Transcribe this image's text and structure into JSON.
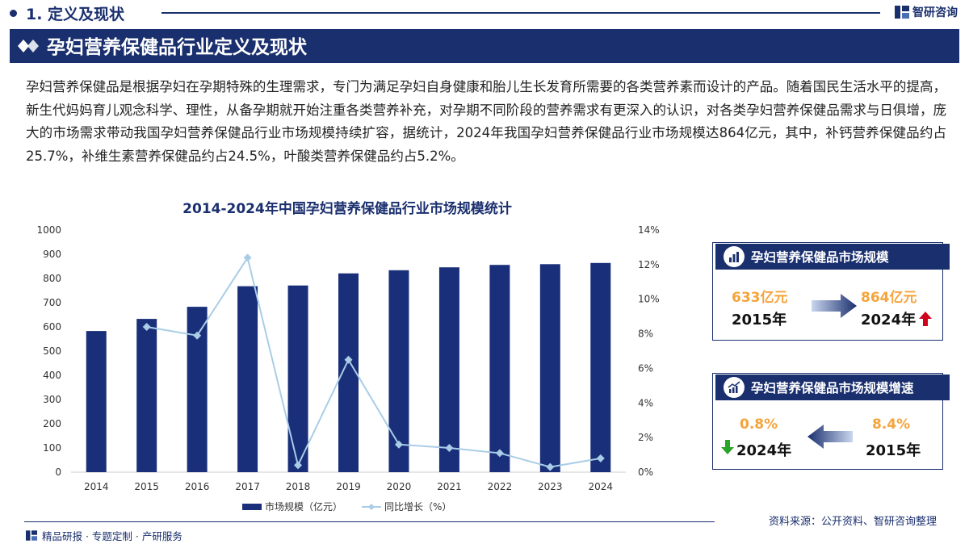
{
  "header": {
    "section_title": "1. 定义及现状",
    "brand": "智研咨询"
  },
  "banner": {
    "title": "孕妇营养保健品行业定义及现状"
  },
  "intro": "孕妇营养保健品是根据孕妇在孕期特殊的生理需求，专门为满足孕妇自身健康和胎儿生长发育所需要的各类营养素而设计的产品。随着国民生活水平的提高，新生代妈妈育儿观念科学、理性，从备孕期就开始注重各类营养补充，对孕期不同阶段的营养需求有更深入的认识，对各类孕妇营养保健品需求与日俱增，庞大的市场需求带动我国孕妇营养保健品行业市场规模持续扩容，据统计，2024年我国孕妇营养保健品行业市场规模达864亿元，其中，补钙营养保健品约占25.7%，补维生素营养保健品约占24.5%，叶酸类营养保健品约占5.2%。",
  "chart_data": {
    "type": "bar",
    "title": "2014-2024年中国孕妇营养保健品行业市场规模统计",
    "categories": [
      "2014",
      "2015",
      "2016",
      "2017",
      "2018",
      "2019",
      "2020",
      "2021",
      "2022",
      "2023",
      "2024"
    ],
    "series": [
      {
        "name": "市场规模（亿元）",
        "type": "bar",
        "axis": "left",
        "values": [
          583,
          633,
          683,
          768,
          771,
          821,
          834,
          846,
          856,
          859,
          864
        ]
      },
      {
        "name": "同比增长（%）",
        "type": "line",
        "axis": "right",
        "values": [
          null,
          8.4,
          7.9,
          12.4,
          0.4,
          6.5,
          1.6,
          1.4,
          1.1,
          0.3,
          0.8
        ]
      }
    ],
    "y_left": {
      "min": 0,
      "max": 1000,
      "ticks": [
        "0",
        "100",
        "200",
        "300",
        "400",
        "500",
        "600",
        "700",
        "800",
        "900",
        "1000"
      ]
    },
    "y_right": {
      "min": 0,
      "max": 14,
      "ticks": [
        "0%",
        "2%",
        "4%",
        "6%",
        "8%",
        "10%",
        "12%",
        "14%"
      ]
    },
    "colors": {
      "bar": "#1a2f7a",
      "line": "#a9cde6"
    },
    "legend_position": "bottom",
    "grid": false
  },
  "panel_scale": {
    "title": "孕妇营养保健品市场规模",
    "left_value": "633亿元",
    "left_year": "2015年",
    "right_value": "864亿元",
    "right_year": "2024年"
  },
  "panel_growth": {
    "title": "孕妇营养保健品市场规模增速",
    "left_value": "0.8%",
    "left_year": "2024年",
    "right_value": "8.4%",
    "right_year": "2015年"
  },
  "footer": {
    "source": "资料来源：公开资料、智研咨询整理",
    "tagline": "精品研报 · 专题定制 · 产研服务"
  },
  "colors": {
    "navy": "#1a2f6e",
    "orange": "#f5a43c",
    "up_arrow": "#d0021b",
    "down_arrow": "#2aa52a"
  }
}
